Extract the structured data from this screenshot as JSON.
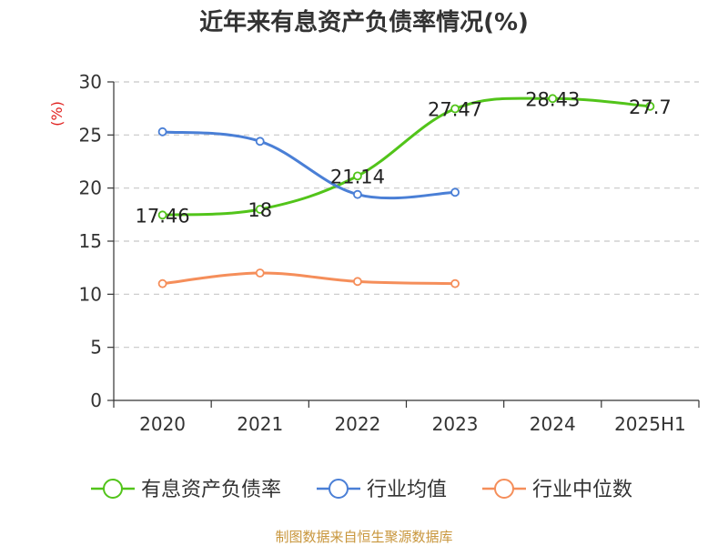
{
  "chart_data": {
    "type": "line",
    "title": "近年来有息资产负债率情况(%)",
    "ylabel": "(%)",
    "xlabel": "",
    "categories": [
      "2020",
      "2021",
      "2022",
      "2023",
      "2024",
      "2025H1"
    ],
    "ylim": [
      0,
      30
    ],
    "yticks": [
      0,
      5,
      10,
      15,
      20,
      25,
      30
    ],
    "grid": "horizontal dashed",
    "legend_position": "bottom",
    "series": [
      {
        "name": "有息资产负债率",
        "color": "#52c41a",
        "values": [
          17.46,
          18,
          21.14,
          27.47,
          28.43,
          27.7
        ],
        "labels": [
          "17.46",
          "18",
          "21.14",
          "27.47",
          "28.43",
          "27.7"
        ]
      },
      {
        "name": "行业均值",
        "color": "#4a7fd6",
        "values": [
          25.3,
          24.4,
          19.4,
          19.6,
          null,
          null
        ]
      },
      {
        "name": "行业中位数",
        "color": "#f58e5a",
        "values": [
          11.0,
          12.0,
          11.2,
          11.0,
          null,
          null
        ]
      }
    ]
  },
  "source": "制图数据来自恒生聚源数据库"
}
